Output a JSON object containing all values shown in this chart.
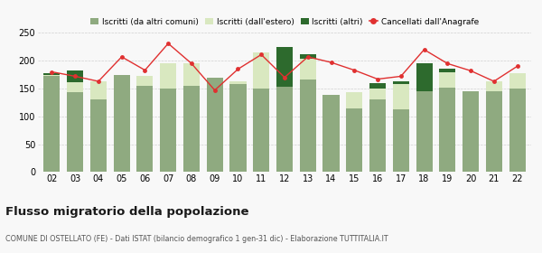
{
  "years": [
    "02",
    "03",
    "04",
    "05",
    "06",
    "07",
    "08",
    "09",
    "10",
    "11",
    "12",
    "13",
    "14",
    "15",
    "16",
    "17",
    "18",
    "19",
    "20",
    "21",
    "22"
  ],
  "iscritti_altri_comuni": [
    172,
    143,
    130,
    175,
    155,
    150,
    155,
    170,
    158,
    150,
    153,
    167,
    138,
    115,
    130,
    113,
    145,
    152,
    145,
    145,
    150
  ],
  "iscritti_estero": [
    2,
    18,
    33,
    0,
    18,
    45,
    40,
    0,
    5,
    65,
    0,
    37,
    0,
    28,
    20,
    45,
    0,
    28,
    0,
    18,
    27
  ],
  "iscritti_altri": [
    3,
    22,
    0,
    0,
    0,
    0,
    0,
    0,
    0,
    0,
    72,
    7,
    0,
    0,
    10,
    5,
    50,
    5,
    0,
    0,
    0
  ],
  "cancellati": [
    180,
    172,
    163,
    207,
    183,
    231,
    195,
    147,
    185,
    211,
    170,
    207,
    197,
    183,
    167,
    172,
    220,
    195,
    182,
    163,
    190
  ],
  "title": "Flusso migratorio della popolazione",
  "subtitle": "COMUNE DI OSTELLATO (FE) - Dati ISTAT (bilancio demografico 1 gen-31 dic) - Elaborazione TUTTITALIA.IT",
  "legend_labels": [
    "Iscritti (da altri comuni)",
    "Iscritti (dall'estero)",
    "Iscritti (altri)",
    "Cancellati dall'Anagrafe"
  ],
  "color_altri_comuni": "#8faa80",
  "color_estero": "#d9e8c0",
  "color_altri": "#2d6a2d",
  "color_cancellati": "#e03030",
  "ylim": [
    0,
    250
  ],
  "yticks": [
    0,
    50,
    100,
    150,
    200,
    250
  ],
  "bg_color": "#f8f8f8"
}
